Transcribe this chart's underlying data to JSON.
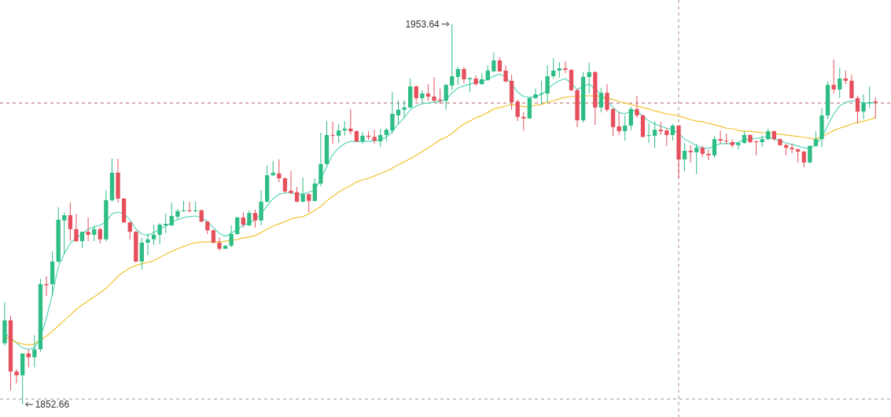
{
  "chart_data": {
    "type": "candlestick",
    "tick_labels": false,
    "categories": [
      null,
      null,
      null,
      null,
      null,
      null,
      null,
      null,
      null,
      null,
      null,
      null,
      null,
      null,
      null,
      null,
      null,
      null,
      null,
      null,
      null,
      null,
      null,
      null,
      null,
      null,
      null,
      null,
      null,
      null,
      null,
      null,
      null,
      null,
      null,
      null,
      null,
      null,
      null,
      null,
      null,
      null,
      null,
      null,
      null,
      null,
      null,
      null,
      null,
      null,
      null,
      null,
      null,
      null,
      null,
      null,
      null,
      null,
      null,
      null,
      null,
      null,
      null,
      null,
      null,
      null,
      null,
      null,
      null,
      null,
      null,
      null,
      null,
      null,
      null,
      null,
      null,
      null,
      null,
      null,
      null,
      null,
      null,
      null,
      null,
      null,
      null,
      null,
      null,
      null,
      null,
      null,
      null,
      null,
      null,
      null,
      null,
      null,
      null,
      null,
      null,
      null,
      null,
      null,
      null,
      null,
      null,
      null,
      null,
      null,
      null,
      null,
      null,
      null,
      null,
      null,
      null,
      null,
      null,
      null,
      null,
      null,
      null,
      null,
      null,
      null,
      null,
      null,
      null,
      null,
      null,
      null,
      null,
      null,
      null,
      null,
      null,
      null,
      null,
      null,
      null,
      null,
      null,
      null,
      null,
      null,
      null
    ],
    "ohlc": [
      [
        1868.9,
        1879.8,
        1868.3,
        1875.0
      ],
      [
        1875.0,
        1876.2,
        1856.4,
        1861.4
      ],
      [
        1861.4,
        1862.0,
        1858.3,
        1860.4
      ],
      [
        1860.4,
        1866.2,
        1852.66,
        1866.2
      ],
      [
        1866.2,
        1867.3,
        1862.5,
        1865.2
      ],
      [
        1865.2,
        1871.0,
        1862.5,
        1867.3
      ],
      [
        1867.3,
        1886.0,
        1866.6,
        1884.6
      ],
      [
        1884.6,
        1886.7,
        1881.4,
        1884.3
      ],
      [
        1884.6,
        1893.3,
        1881.4,
        1890.6
      ],
      [
        1890.6,
        1905.0,
        1890.2,
        1901.7
      ],
      [
        1901.5,
        1903.7,
        1892.7,
        1902.9
      ],
      [
        1902.9,
        1906.3,
        1896.0,
        1899.2
      ],
      [
        1899.2,
        1903.3,
        1895.8,
        1896.0
      ],
      [
        1896.0,
        1898.5,
        1894.2,
        1898.5
      ],
      [
        1898.5,
        1902.3,
        1896.0,
        1897.7
      ],
      [
        1897.7,
        1900.0,
        1896.0,
        1899.2
      ],
      [
        1899.2,
        1899.6,
        1895.4,
        1896.5
      ],
      [
        1896.5,
        1909.6,
        1896.0,
        1906.9
      ],
      [
        1906.9,
        1917.9,
        1906.5,
        1914.2
      ],
      [
        1914.2,
        1917.9,
        1906.3,
        1907.3
      ],
      [
        1907.3,
        1907.5,
        1900.8,
        1901.0
      ],
      [
        1901.0,
        1901.2,
        1896.5,
        1898.5
      ],
      [
        1898.5,
        1898.7,
        1890.4,
        1890.6
      ],
      [
        1890.6,
        1896.9,
        1888.5,
        1895.6
      ],
      [
        1895.6,
        1898.1,
        1892.3,
        1896.5
      ],
      [
        1896.5,
        1900.4,
        1895.0,
        1897.7
      ],
      [
        1897.7,
        1900.8,
        1895.2,
        1900.4
      ],
      [
        1900.2,
        1903.3,
        1898.1,
        1900.6
      ],
      [
        1900.2,
        1906.3,
        1900.0,
        1902.7
      ],
      [
        1902.5,
        1904.6,
        1901.7,
        1904.0
      ],
      [
        1904.0,
        1906.7,
        1903.8,
        1904.2
      ],
      [
        1904.2,
        1906.5,
        1903.7,
        1904.0
      ],
      [
        1904.0,
        1906.5,
        1903.7,
        1904.2
      ],
      [
        1904.2,
        1904.4,
        1901.0,
        1901.2
      ],
      [
        1901.2,
        1901.4,
        1897.9,
        1898.9
      ],
      [
        1898.9,
        1899.1,
        1895.4,
        1895.6
      ],
      [
        1895.6,
        1896.9,
        1893.5,
        1894.0
      ],
      [
        1894.0,
        1895.0,
        1893.9,
        1894.8
      ],
      [
        1894.8,
        1900.2,
        1894.4,
        1897.9
      ],
      [
        1897.9,
        1902.5,
        1897.7,
        1902.3
      ],
      [
        1902.3,
        1903.7,
        1899.6,
        1900.4
      ],
      [
        1900.2,
        1904.2,
        1900.0,
        1903.5
      ],
      [
        1903.5,
        1904.4,
        1899.6,
        1901.5
      ],
      [
        1901.5,
        1909.6,
        1900.2,
        1906.5
      ],
      [
        1906.5,
        1916.1,
        1906.3,
        1913.5
      ],
      [
        1913.5,
        1917.3,
        1913.3,
        1914.2
      ],
      [
        1914.0,
        1917.7,
        1911.7,
        1912.7
      ],
      [
        1912.7,
        1912.9,
        1908.8,
        1909.2
      ],
      [
        1909.4,
        1914.6,
        1908.5,
        1908.8
      ],
      [
        1909.0,
        1910.4,
        1906.3,
        1906.5
      ],
      [
        1906.5,
        1912.9,
        1906.3,
        1908.5
      ],
      [
        1908.5,
        1908.7,
        1903.7,
        1906.7
      ],
      [
        1906.7,
        1912.7,
        1906.5,
        1911.3
      ],
      [
        1911.3,
        1924.8,
        1910.6,
        1916.5
      ],
      [
        1916.5,
        1927.9,
        1916.3,
        1924.2
      ],
      [
        1924.2,
        1927.7,
        1921.9,
        1924.0
      ],
      [
        1924.0,
        1927.1,
        1922.1,
        1925.4
      ],
      [
        1925.4,
        1927.9,
        1924.0,
        1925.9
      ],
      [
        1925.9,
        1931.1,
        1924.4,
        1925.2
      ],
      [
        1925.2,
        1925.4,
        1922.3,
        1922.5
      ],
      [
        1922.5,
        1925.0,
        1921.9,
        1924.0
      ],
      [
        1924.0,
        1925.2,
        1922.9,
        1923.7
      ],
      [
        1923.7,
        1925.6,
        1921.9,
        1922.7
      ],
      [
        1922.5,
        1925.9,
        1921.0,
        1924.2
      ],
      [
        1924.2,
        1926.0,
        1922.5,
        1925.6
      ],
      [
        1925.4,
        1935.6,
        1924.6,
        1929.8
      ],
      [
        1929.4,
        1933.4,
        1927.1,
        1930.9
      ],
      [
        1930.9,
        1933.4,
        1928.8,
        1931.5
      ],
      [
        1931.5,
        1939.2,
        1931.3,
        1937.1
      ],
      [
        1937.1,
        1937.3,
        1933.1,
        1934.0
      ],
      [
        1934.0,
        1936.1,
        1932.9,
        1935.2
      ],
      [
        1935.2,
        1937.7,
        1933.3,
        1934.4
      ],
      [
        1934.4,
        1939.6,
        1933.1,
        1933.3
      ],
      [
        1933.6,
        1936.5,
        1932.5,
        1933.3
      ],
      [
        1933.3,
        1937.7,
        1930.9,
        1937.5
      ],
      [
        1937.3,
        1953.64,
        1936.1,
        1939.8
      ],
      [
        1939.6,
        1942.3,
        1937.5,
        1941.7
      ],
      [
        1941.7,
        1942.3,
        1937.9,
        1939.0
      ],
      [
        1939.0,
        1939.5,
        1935.6,
        1939.3
      ],
      [
        1939.2,
        1940.0,
        1937.3,
        1937.7
      ],
      [
        1937.7,
        1940.6,
        1937.5,
        1939.0
      ],
      [
        1938.8,
        1942.7,
        1938.6,
        1941.3
      ],
      [
        1941.1,
        1946.1,
        1940.9,
        1944.0
      ],
      [
        1944.0,
        1944.8,
        1940.9,
        1941.1
      ],
      [
        1941.3,
        1942.7,
        1938.1,
        1938.4
      ],
      [
        1938.6,
        1940.2,
        1930.9,
        1932.9
      ],
      [
        1933.1,
        1933.6,
        1927.9,
        1929.0
      ],
      [
        1929.0,
        1930.2,
        1925.4,
        1928.6
      ],
      [
        1928.6,
        1934.2,
        1928.4,
        1934.0
      ],
      [
        1934.0,
        1936.5,
        1933.8,
        1935.0
      ],
      [
        1935.0,
        1938.6,
        1932.3,
        1935.2
      ],
      [
        1935.2,
        1942.7,
        1932.9,
        1939.8
      ],
      [
        1939.8,
        1944.6,
        1939.2,
        1941.3
      ],
      [
        1941.3,
        1943.6,
        1939.4,
        1941.9
      ],
      [
        1941.9,
        1943.8,
        1940.6,
        1941.5
      ],
      [
        1941.5,
        1941.7,
        1935.8,
        1936.1
      ],
      [
        1936.1,
        1936.5,
        1926.3,
        1928.1
      ],
      [
        1928.1,
        1940.9,
        1927.5,
        1939.6
      ],
      [
        1939.6,
        1943.4,
        1935.4,
        1940.9
      ],
      [
        1940.9,
        1941.1,
        1926.9,
        1931.5
      ],
      [
        1931.5,
        1936.7,
        1930.2,
        1935.4
      ],
      [
        1935.4,
        1937.7,
        1930.4,
        1930.9
      ],
      [
        1931.1,
        1931.3,
        1924.0,
        1926.3
      ],
      [
        1926.5,
        1930.2,
        1924.2,
        1925.2
      ],
      [
        1925.2,
        1929.4,
        1922.7,
        1926.7
      ],
      [
        1926.7,
        1931.7,
        1925.4,
        1931.1
      ],
      [
        1931.1,
        1934.6,
        1928.8,
        1929.4
      ],
      [
        1929.4,
        1929.6,
        1923.5,
        1923.7
      ],
      [
        1924.0,
        1927.3,
        1922.1,
        1924.2
      ],
      [
        1924.0,
        1927.9,
        1920.8,
        1925.6
      ],
      [
        1925.6,
        1927.7,
        1924.2,
        1925.2
      ],
      [
        1925.4,
        1926.0,
        1921.3,
        1924.2
      ],
      [
        1924.2,
        1927.1,
        1922.7,
        1926.7
      ],
      [
        1926.7,
        1926.9,
        1912.7,
        1917.7
      ],
      [
        1917.7,
        1922.1,
        1914.6,
        1920.0
      ],
      [
        1920.0,
        1921.5,
        1916.9,
        1919.6
      ],
      [
        1919.6,
        1921.9,
        1913.8,
        1920.8
      ],
      [
        1920.8,
        1921.3,
        1918.3,
        1919.2
      ],
      [
        1919.2,
        1920.2,
        1917.5,
        1918.8
      ],
      [
        1918.8,
        1924.0,
        1918.1,
        1923.1
      ],
      [
        1923.1,
        1925.4,
        1921.9,
        1922.7
      ],
      [
        1922.7,
        1924.6,
        1921.7,
        1922.5
      ],
      [
        1922.3,
        1923.1,
        1920.8,
        1921.5
      ],
      [
        1921.5,
        1922.3,
        1920.4,
        1922.1
      ],
      [
        1922.1,
        1925.2,
        1921.9,
        1924.2
      ],
      [
        1924.2,
        1924.4,
        1922.1,
        1922.3
      ],
      [
        1922.5,
        1922.7,
        1918.8,
        1922.3
      ],
      [
        1922.3,
        1924.0,
        1921.0,
        1923.1
      ],
      [
        1923.1,
        1925.9,
        1922.9,
        1925.2
      ],
      [
        1925.2,
        1925.4,
        1922.7,
        1923.1
      ],
      [
        1923.1,
        1923.3,
        1921.3,
        1921.5
      ],
      [
        1921.5,
        1921.9,
        1918.8,
        1920.8
      ],
      [
        1920.8,
        1921.9,
        1919.4,
        1920.4
      ],
      [
        1920.4,
        1920.6,
        1916.9,
        1919.8
      ],
      [
        1919.8,
        1920.0,
        1915.6,
        1916.9
      ],
      [
        1916.9,
        1921.5,
        1916.7,
        1921.3
      ],
      [
        1921.3,
        1925.2,
        1921.0,
        1923.1
      ],
      [
        1923.1,
        1931.3,
        1921.0,
        1929.4
      ],
      [
        1929.4,
        1938.4,
        1928.4,
        1937.5
      ],
      [
        1937.5,
        1944.2,
        1935.2,
        1936.3
      ],
      [
        1936.3,
        1942.1,
        1934.0,
        1939.2
      ],
      [
        1939.2,
        1941.3,
        1937.7,
        1938.6
      ],
      [
        1938.6,
        1940.2,
        1933.8,
        1934.0
      ],
      [
        1934.0,
        1934.6,
        1927.3,
        1930.4
      ],
      [
        1930.4,
        1935.0,
        1928.4,
        1932.7
      ],
      [
        1932.7,
        1937.1,
        1931.3,
        1932.9
      ],
      [
        1933.1,
        1934.2,
        1928.6,
        1932.7
      ]
    ],
    "colors": [
      "#2ebd85",
      "#e5505c",
      "#e5505c",
      "#2ebd85",
      "#e5505c",
      "#2ebd85",
      "#2ebd85",
      "#e5505c",
      "#2ebd85",
      "#2ebd85",
      "#2ebd85",
      "#e5505c",
      "#e5505c",
      "#2ebd85",
      "#e5505c",
      "#2ebd85",
      "#e5505c",
      "#2ebd85",
      "#2ebd85",
      "#e5505c",
      "#e5505c",
      "#e5505c",
      "#e5505c",
      "#2ebd85",
      "#2ebd85",
      "#2ebd85",
      "#2ebd85",
      "#2ebd85",
      "#2ebd85",
      "#2ebd85",
      "#2ebd85",
      "#e5505c",
      "#2ebd85",
      "#e5505c",
      "#e5505c",
      "#e5505c",
      "#e5505c",
      "#2ebd85",
      "#2ebd85",
      "#2ebd85",
      "#e5505c",
      "#2ebd85",
      "#e5505c",
      "#2ebd85",
      "#2ebd85",
      "#2ebd85",
      "#e5505c",
      "#e5505c",
      "#e5505c",
      "#e5505c",
      "#2ebd85",
      "#e5505c",
      "#2ebd85",
      "#2ebd85",
      "#2ebd85",
      "#e5505c",
      "#2ebd85",
      "#2ebd85",
      "#e5505c",
      "#e5505c",
      "#2ebd85",
      "#e5505c",
      "#e5505c",
      "#2ebd85",
      "#2ebd85",
      "#2ebd85",
      "#2ebd85",
      "#2ebd85",
      "#2ebd85",
      "#e5505c",
      "#2ebd85",
      "#e5505c",
      "#e5505c",
      "#e5505c",
      "#2ebd85",
      "#2ebd85",
      "#2ebd85",
      "#e5505c",
      "#2ebd85",
      "#e5505c",
      "#2ebd85",
      "#2ebd85",
      "#2ebd85",
      "#e5505c",
      "#e5505c",
      "#e5505c",
      "#e5505c",
      "#e5505c",
      "#2ebd85",
      "#2ebd85",
      "#2ebd85",
      "#2ebd85",
      "#2ebd85",
      "#2ebd85",
      "#e5505c",
      "#e5505c",
      "#e5505c",
      "#2ebd85",
      "#2ebd85",
      "#e5505c",
      "#2ebd85",
      "#e5505c",
      "#e5505c",
      "#e5505c",
      "#2ebd85",
      "#2ebd85",
      "#e5505c",
      "#e5505c",
      "#2ebd85",
      "#2ebd85",
      "#e5505c",
      "#e5505c",
      "#2ebd85",
      "#e5505c",
      "#2ebd85",
      "#e5505c",
      "#2ebd85",
      "#e5505c",
      "#e5505c",
      "#2ebd85",
      "#e5505c",
      "#e5505c",
      "#e5505c",
      "#2ebd85",
      "#2ebd85",
      "#e5505c",
      "#e5505c",
      "#2ebd85",
      "#2ebd85",
      "#e5505c",
      "#e5505c",
      "#e5505c",
      "#e5505c",
      "#e5505c",
      "#e5505c",
      "#2ebd85",
      "#2ebd85",
      "#2ebd85",
      "#2ebd85",
      "#e5505c",
      "#2ebd85",
      "#e5505c",
      "#e5505c",
      "#e5505c",
      "#2ebd85",
      "#2ebd85",
      "#e5505c"
    ],
    "series": [
      {
        "type": "line",
        "color": "#58d6bd",
        "values": [
          1871.4,
          1870.4,
          1868.9,
          1867.7,
          1867.3,
          1867.7,
          1870.4,
          1875.6,
          1881.9,
          1889.2,
          1892.7,
          1895.4,
          1896.9,
          1897.9,
          1899.2,
          1899.8,
          1900.2,
          1901.2,
          1903.3,
          1903.7,
          1903.3,
          1901.7,
          1899.2,
          1897.9,
          1897.5,
          1898.3,
          1899.2,
          1900.0,
          1901.0,
          1901.7,
          1902.3,
          1902.5,
          1902.7,
          1902.3,
          1901.2,
          1899.6,
          1898.1,
          1897.3,
          1898.1,
          1899.2,
          1900.2,
          1900.8,
          1901.7,
          1903.3,
          1905.4,
          1907.3,
          1908.5,
          1908.8,
          1908.8,
          1908.5,
          1908.5,
          1909.0,
          1909.6,
          1912.5,
          1915.8,
          1919.0,
          1920.8,
          1921.9,
          1922.5,
          1922.5,
          1922.5,
          1922.5,
          1922.7,
          1922.9,
          1923.6,
          1925.2,
          1927.1,
          1928.8,
          1930.9,
          1931.9,
          1932.5,
          1932.7,
          1932.9,
          1933.1,
          1933.6,
          1935.4,
          1936.7,
          1937.3,
          1937.7,
          1938.2,
          1938.4,
          1939.0,
          1939.8,
          1940.4,
          1939.6,
          1937.7,
          1935.6,
          1934.4,
          1934.2,
          1934.4,
          1935.0,
          1936.3,
          1937.7,
          1938.6,
          1939.2,
          1937.9,
          1936.3,
          1937.1,
          1937.7,
          1936.5,
          1935.0,
          1933.3,
          1931.5,
          1930.2,
          1929.8,
          1930.6,
          1930.6,
          1929.2,
          1927.9,
          1927.1,
          1926.5,
          1926.0,
          1925.6,
          1924.6,
          1923.1,
          1922.3,
          1921.3,
          1920.8,
          1920.6,
          1921.3,
          1921.9,
          1921.9,
          1921.9,
          1922.3,
          1922.9,
          1923.1,
          1923.3,
          1923.6,
          1923.6,
          1923.1,
          1922.7,
          1922.1,
          1921.7,
          1921.3,
          1920.8,
          1920.6,
          1921.7,
          1923.6,
          1926.7,
          1929.8,
          1931.9,
          1932.9,
          1933.3,
          1933.1,
          1932.7,
          1932.7,
          1932.7
        ]
      },
      {
        "type": "line",
        "color": "#f2c230",
        "values": [
          1870.4,
          1870.0,
          1869.1,
          1868.7,
          1868.5,
          1868.7,
          1869.8,
          1870.8,
          1872.1,
          1873.5,
          1875.0,
          1876.4,
          1877.9,
          1879.1,
          1880.2,
          1881.2,
          1882.3,
          1883.5,
          1885.0,
          1886.7,
          1887.9,
          1888.9,
          1889.6,
          1890.0,
          1890.4,
          1890.8,
          1891.7,
          1892.5,
          1893.3,
          1894.0,
          1894.6,
          1895.2,
          1895.6,
          1895.8,
          1895.8,
          1895.8,
          1895.8,
          1896.0,
          1896.2,
          1896.5,
          1896.9,
          1897.1,
          1897.5,
          1898.3,
          1899.2,
          1900.0,
          1900.6,
          1901.2,
          1901.9,
          1902.3,
          1902.5,
          1903.3,
          1904.2,
          1905.2,
          1906.7,
          1907.9,
          1909.0,
          1910.0,
          1910.8,
          1911.7,
          1912.3,
          1912.7,
          1913.3,
          1914.0,
          1914.6,
          1915.4,
          1916.3,
          1917.1,
          1917.9,
          1918.8,
          1919.8,
          1920.8,
          1921.9,
          1922.9,
          1923.6,
          1924.6,
          1926.0,
          1927.1,
          1927.9,
          1928.8,
          1929.4,
          1930.2,
          1931.1,
          1931.5,
          1931.9,
          1932.3,
          1932.1,
          1931.7,
          1931.7,
          1932.1,
          1932.3,
          1932.9,
          1933.3,
          1933.8,
          1934.2,
          1934.4,
          1934.4,
          1934.6,
          1934.6,
          1934.6,
          1934.4,
          1934.0,
          1933.6,
          1933.1,
          1932.7,
          1932.3,
          1931.9,
          1931.5,
          1931.1,
          1930.6,
          1930.2,
          1929.8,
          1929.6,
          1929.2,
          1928.8,
          1928.3,
          1927.9,
          1927.7,
          1927.3,
          1926.9,
          1926.5,
          1926.0,
          1925.9,
          1925.4,
          1925.2,
          1925.2,
          1925.0,
          1924.8,
          1924.8,
          1924.6,
          1924.4,
          1924.2,
          1924.0,
          1923.8,
          1923.6,
          1923.3,
          1923.1,
          1923.8,
          1924.6,
          1925.4,
          1926.0,
          1926.5,
          1927.1,
          1927.5,
          1927.9,
          1928.3,
          1928.8
        ]
      }
    ],
    "ref_lines": [
      {
        "axis": "y",
        "value": 1932.7,
        "color": "#b0605e",
        "line_style": "dashed"
      },
      {
        "axis": "y",
        "value": 1854.1,
        "color": "#9a9a9a",
        "line_style": "dashed"
      }
    ],
    "annotations": [
      "1953.64",
      "1852.66"
    ]
  }
}
